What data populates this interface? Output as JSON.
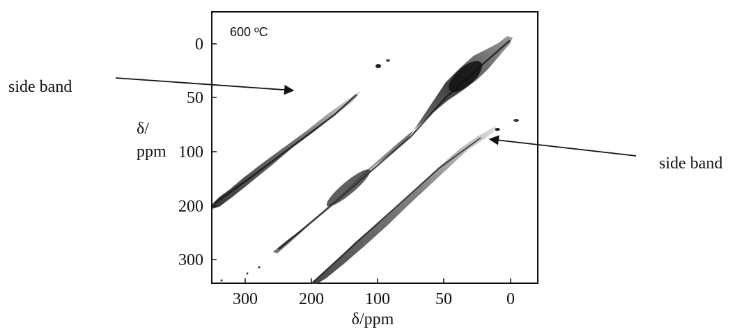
{
  "chart_data": {
    "type": "heatmap",
    "subtype": "2D NMR contour plot",
    "title": "600 ºC",
    "xlabel": "δ/ppm",
    "ylabel": "δ/\nppm",
    "ylabel_lines": [
      "δ/",
      "ppm"
    ],
    "x_ticks": [
      "300",
      "200",
      "100",
      "50",
      "0"
    ],
    "y_ticks": [
      "0",
      "50",
      "100",
      "200",
      "300"
    ],
    "x_reversed": true,
    "y_reversed": true,
    "grid": false,
    "annotations": [
      {
        "text": "side band",
        "points_to": "upper-left diagonal band"
      },
      {
        "text": "side band",
        "points_to": "lower-right diagonal band"
      }
    ],
    "ridges": [
      {
        "name": "main diagonal",
        "from_ppm": [
          290,
          290
        ],
        "to_ppm": [
          0,
          0
        ],
        "intensity": "high",
        "peak_near_ppm": [
          40,
          40
        ]
      },
      {
        "name": "upper side band",
        "from_ppm": [
          350,
          200
        ],
        "to_ppm": [
          80,
          20
        ],
        "intensity": "medium"
      },
      {
        "name": "lower side band",
        "from_ppm": [
          200,
          350
        ],
        "to_ppm": [
          20,
          80
        ],
        "intensity": "medium"
      }
    ]
  }
}
